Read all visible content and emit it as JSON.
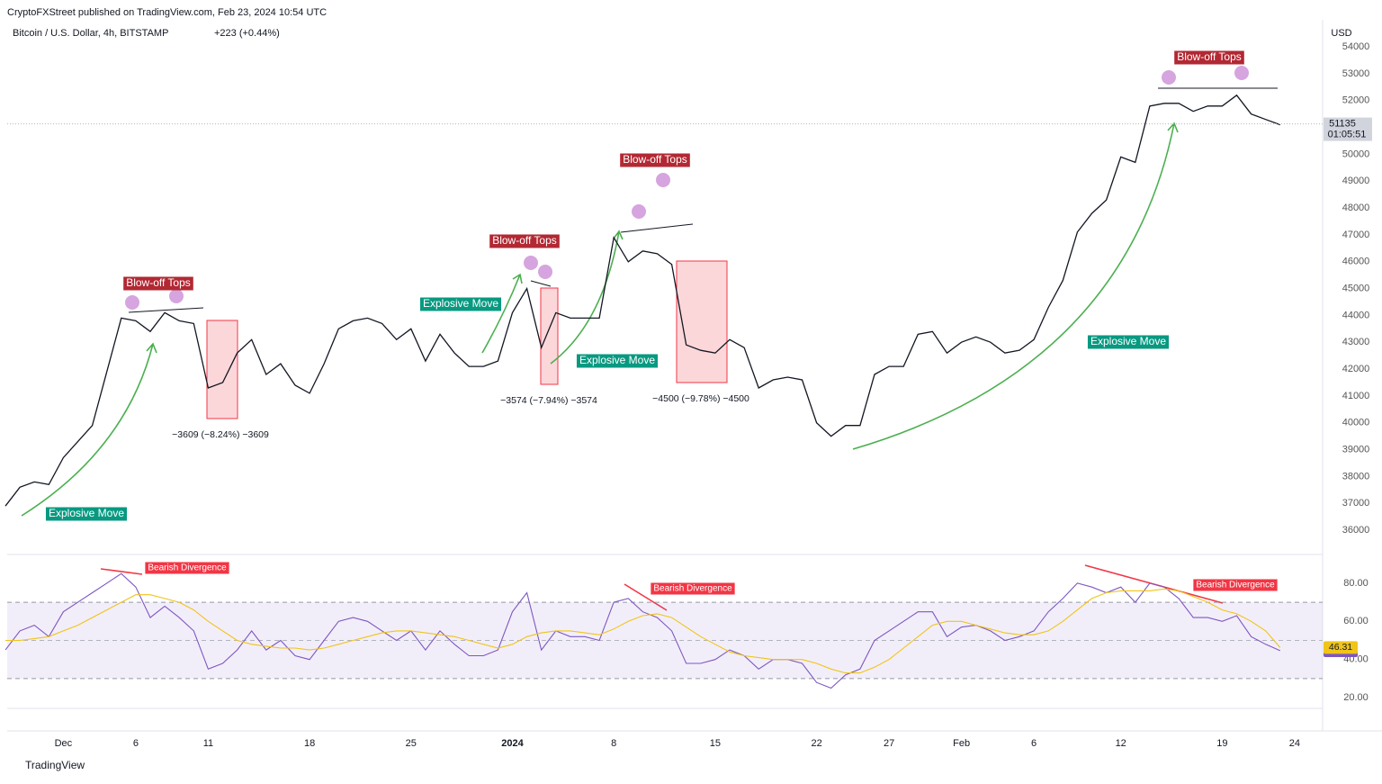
{
  "header": {
    "published": "CryptoFXStreet published on TradingView.com, Feb 23, 2024 10:54 UTC",
    "brand": "TradingView"
  },
  "chart_data": [
    {
      "type": "line",
      "title": "Bitcoin / U.S. Dollar, 4h, BITSTAMP",
      "change": "+223 (+0.44%)",
      "currency": "USD",
      "color": "#131722",
      "categories": [
        null,
        null,
        null,
        null,
        "Dec",
        null,
        null,
        null,
        null,
        "6",
        null,
        null,
        null,
        null,
        "11",
        null,
        null,
        null,
        null,
        null,
        null,
        "18",
        null,
        null,
        null,
        null,
        null,
        null,
        "25",
        null,
        null,
        null,
        null,
        null,
        null,
        "2024",
        null,
        null,
        null,
        null,
        null,
        null,
        "8",
        null,
        null,
        null,
        null,
        null,
        null,
        "15",
        null,
        null,
        null,
        null,
        null,
        null,
        "22",
        null,
        null,
        null,
        null,
        "27",
        null,
        null,
        null,
        null,
        "Feb",
        null,
        null,
        null,
        null,
        "6",
        null,
        null,
        null,
        null,
        null,
        "12",
        null,
        null,
        null,
        null,
        null,
        null,
        "19",
        null,
        null,
        null,
        null,
        "24"
      ],
      "values": [
        36900,
        37600,
        37800,
        37700,
        38700,
        39300,
        39900,
        41900,
        43900,
        43800,
        43400,
        44100,
        43800,
        43700,
        41300,
        41500,
        42600,
        43100,
        41800,
        42200,
        41400,
        41100,
        42200,
        43500,
        43800,
        43900,
        43700,
        43100,
        43500,
        42300,
        43300,
        42600,
        42100,
        42100,
        42300,
        44100,
        45000,
        42800,
        44100,
        43900,
        43900,
        43900,
        46900,
        46000,
        46400,
        46300,
        45900,
        42900,
        42700,
        42600,
        43100,
        42800,
        41300,
        41600,
        41700,
        41600,
        40000,
        39500,
        39900,
        39900,
        41800,
        42100,
        42100,
        43300,
        43400,
        42600,
        43000,
        43200,
        43000,
        42600,
        42700,
        43100,
        44300,
        45300,
        47100,
        47800,
        48300,
        49900,
        49700,
        51800,
        51900,
        51900,
        51600,
        51800,
        51800,
        52200,
        51500,
        51300,
        51100,
        null
      ],
      "last_price": 51135,
      "countdown": "01:05:51",
      "ylim": [
        35130,
        55010
      ],
      "yticks": [
        36000,
        37000,
        38000,
        39000,
        40000,
        41000,
        42000,
        43000,
        44000,
        45000,
        46000,
        47000,
        48000,
        49000,
        50000,
        51000,
        52000,
        53000,
        54000
      ],
      "grid": false,
      "annotations": [
        "Blow-off Tops",
        "Blow-off Tops",
        "Blow-off Tops",
        "Blow-off Tops",
        "Explosive Move",
        "Explosive Move",
        "Explosive Move",
        "Explosive Move",
        "−3609 (−8.24%) −3609",
        "−3574 (−7.94%) −3574",
        "−4500 (−9.78%) −4500"
      ]
    },
    {
      "type": "line",
      "series": [
        {
          "color": "#7e57c2",
          "values": [
            45,
            55,
            58,
            52,
            65,
            70,
            75,
            80,
            85,
            78,
            62,
            68,
            62,
            55,
            35,
            38,
            45,
            55,
            45,
            50,
            42,
            40,
            50,
            60,
            62,
            60,
            55,
            50,
            55,
            45,
            55,
            48,
            42,
            42,
            45,
            65,
            75,
            45,
            55,
            52,
            52,
            50,
            70,
            72,
            65,
            62,
            55,
            38,
            38,
            40,
            45,
            42,
            35,
            40,
            40,
            38,
            28,
            25,
            32,
            35,
            50,
            55,
            60,
            65,
            65,
            52,
            57,
            58,
            55,
            50,
            52,
            55,
            65,
            72,
            80,
            78,
            75,
            78,
            70,
            80,
            78,
            72,
            62,
            62,
            60,
            63,
            52,
            48,
            44.62,
            null
          ]
        },
        {
          "color": "#f0c419",
          "values": [
            50,
            50,
            51,
            52,
            55,
            58,
            62,
            66,
            70,
            74,
            74,
            72,
            70,
            66,
            60,
            55,
            50,
            48,
            47,
            46,
            46,
            45,
            46,
            48,
            50,
            52,
            54,
            55,
            55,
            54,
            53,
            52,
            50,
            48,
            46,
            48,
            52,
            54,
            55,
            55,
            54,
            53,
            56,
            60,
            63,
            64,
            62,
            57,
            52,
            48,
            44,
            42,
            41,
            40,
            40,
            40,
            38,
            35,
            33,
            33,
            36,
            40,
            46,
            52,
            58,
            60,
            60,
            58,
            56,
            54,
            53,
            53,
            55,
            60,
            66,
            72,
            75,
            76,
            76,
            76,
            77,
            76,
            73,
            70,
            66,
            64,
            60,
            55,
            46.31,
            null
          ]
        }
      ],
      "ylim": [
        14.4,
        94.6
      ],
      "yticks": [
        {
          "value": 20,
          "label": "20.00"
        },
        {
          "value": 40,
          "label": "40.00"
        },
        {
          "value": 60,
          "label": "60.00"
        },
        {
          "value": 80,
          "label": "80.00"
        }
      ],
      "band": [
        30,
        70
      ],
      "annotations": [
        "Bearish Divergence",
        "Bearish Divergence",
        "Bearish Divergence"
      ]
    }
  ]
}
